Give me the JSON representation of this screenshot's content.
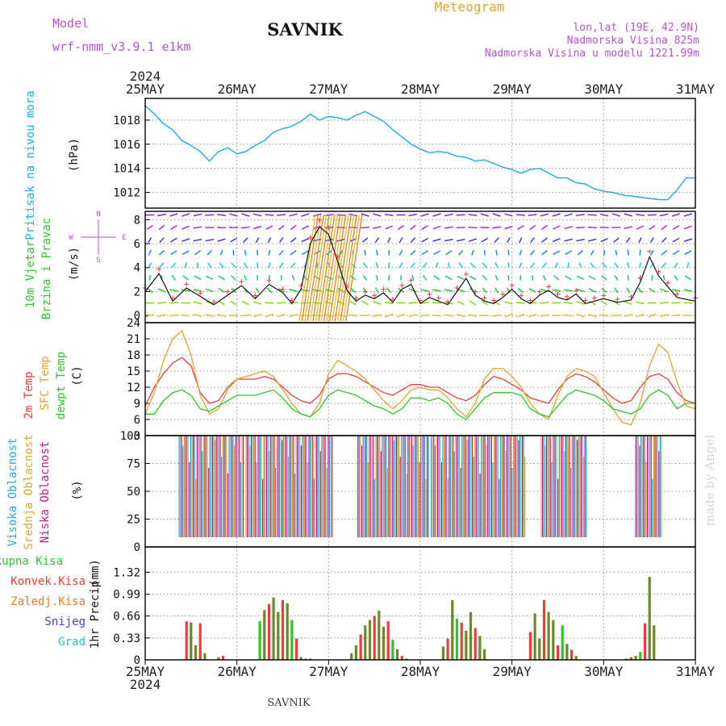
{
  "header": {
    "station": "SAVNIK",
    "product": "Meteogram",
    "model_label": "Model",
    "model_name": "wrf-nmm_v3.9.1 e1km",
    "coords": "lon,lat (19E, 42.9N)",
    "elevation": "Nadmorska Visina 825m",
    "model_elevation": "Nadmorska Visina u modelu 1221.99m",
    "footer_station": "SAVNIK",
    "watermark": "made by Angel"
  },
  "time_axis": {
    "year": "2024",
    "labels": [
      "25MAY",
      "26MAY",
      "27MAY",
      "28MAY",
      "29MAY",
      "30MAY",
      "31MAY"
    ],
    "range_days": [
      0,
      6
    ]
  },
  "colors": {
    "pressure": "#1fa9e6",
    "temp2m": "#ef3b3b",
    "sfc": "#e0a531",
    "dewpt": "#2dc52d",
    "cloud_high": "#1fa9e6",
    "cloud_mid": "#e0a531",
    "cloud_low": "#c8198a",
    "precip_total": "#2dc52d",
    "precip_conv": "#ef3b3b",
    "precip_frozen": "#f07a2b",
    "snow": "#4a3fdc",
    "hail": "#22c2c2",
    "wind_label": "#2dc52d",
    "legend_purple": "#b455d2"
  },
  "chart_data": [
    {
      "type": "line",
      "name": "pressure",
      "ylabel_color_text": "Pritisak na nivou mora",
      "unit": "(hPa)",
      "ylim": [
        1010.7,
        1019.8
      ],
      "yticks": [
        1012,
        1014,
        1016,
        1018
      ],
      "x_days": [
        0,
        0.1,
        0.2,
        0.3,
        0.4,
        0.5,
        0.6,
        0.7,
        0.8,
        0.9,
        1.0,
        1.1,
        1.2,
        1.3,
        1.4,
        1.5,
        1.6,
        1.7,
        1.8,
        1.9,
        2.0,
        2.1,
        2.2,
        2.3,
        2.4,
        2.5,
        2.6,
        2.7,
        2.8,
        2.9,
        3.0,
        3.1,
        3.2,
        3.3,
        3.4,
        3.5,
        3.6,
        3.7,
        3.8,
        3.9,
        4.0,
        4.1,
        4.2,
        4.3,
        4.4,
        4.5,
        4.6,
        4.7,
        4.8,
        4.9,
        5.0,
        5.1,
        5.2,
        5.3,
        5.4,
        5.5,
        5.6,
        5.7,
        5.8,
        5.9,
        6.0
      ],
      "values": [
        1019.2,
        1018.5,
        1017.7,
        1017.2,
        1016.3,
        1015.9,
        1015.4,
        1014.6,
        1015.4,
        1015.7,
        1015.2,
        1015.4,
        1015.9,
        1016.3,
        1017.0,
        1017.3,
        1017.5,
        1017.9,
        1018.5,
        1018.0,
        1018.3,
        1018.2,
        1018.0,
        1018.4,
        1018.7,
        1018.3,
        1017.9,
        1017.2,
        1016.6,
        1016.0,
        1015.6,
        1015.3,
        1015.4,
        1015.3,
        1015.0,
        1014.9,
        1014.6,
        1014.7,
        1014.4,
        1014.1,
        1013.9,
        1013.6,
        1013.9,
        1014.0,
        1013.6,
        1013.2,
        1013.2,
        1012.8,
        1012.7,
        1012.3,
        1012.1,
        1012.0,
        1011.8,
        1011.7,
        1011.6,
        1011.5,
        1011.4,
        1011.4,
        1012.2,
        1013.2,
        1013.2
      ]
    },
    {
      "type": "line",
      "name": "wind",
      "ylabel_left_1": "10m Vjetar",
      "ylabel_left_2": "Brzina i Pravac",
      "unit": "(m/s)",
      "compass": {
        "n": "N",
        "s": "S",
        "e": "E",
        "w": "W"
      },
      "ylim": [
        -0.6,
        8.7
      ],
      "yticks": [
        0,
        2,
        4,
        6,
        8
      ],
      "x_days": [
        0,
        0.15,
        0.3,
        0.45,
        0.6,
        0.75,
        0.9,
        1.05,
        1.2,
        1.35,
        1.5,
        1.6,
        1.7,
        1.8,
        1.9,
        2.0,
        2.1,
        2.2,
        2.3,
        2.4,
        2.5,
        2.6,
        2.7,
        2.8,
        2.9,
        3.0,
        3.1,
        3.2,
        3.3,
        3.4,
        3.5,
        3.6,
        3.7,
        3.8,
        3.9,
        4.0,
        4.1,
        4.2,
        4.3,
        4.4,
        4.5,
        4.6,
        4.7,
        4.8,
        4.9,
        5.0,
        5.15,
        5.3,
        5.4,
        5.5,
        5.6,
        5.7,
        5.8,
        6.0
      ],
      "speed": [
        2.0,
        3.5,
        1.2,
        2.3,
        1.6,
        0.9,
        1.7,
        2.5,
        1.4,
        2.6,
        1.9,
        1.0,
        2.2,
        6.0,
        7.4,
        6.8,
        4.5,
        2.1,
        1.2,
        1.7,
        1.4,
        1.9,
        1.1,
        2.2,
        2.6,
        1.0,
        1.5,
        1.2,
        0.9,
        2.0,
        3.1,
        1.7,
        1.2,
        1.0,
        1.5,
        2.2,
        1.4,
        1.0,
        1.7,
        2.1,
        1.5,
        1.3,
        1.8,
        1.0,
        1.2,
        1.4,
        1.1,
        1.3,
        2.8,
        4.9,
        3.3,
        2.4,
        1.5,
        1.2
      ],
      "direction": "arrows colored by height level"
    },
    {
      "type": "line",
      "name": "temperature",
      "legend": [
        "2m Temp",
        "SFC Temp",
        "dewpt Temp"
      ],
      "unit": "(C)",
      "ylim": [
        3,
        24
      ],
      "yticks": [
        3,
        6,
        9,
        12,
        15,
        18,
        21,
        24
      ],
      "x_days": [
        0,
        0.1,
        0.2,
        0.3,
        0.4,
        0.5,
        0.6,
        0.7,
        0.8,
        0.9,
        1.0,
        1.1,
        1.2,
        1.3,
        1.4,
        1.5,
        1.6,
        1.7,
        1.8,
        1.9,
        2.0,
        2.1,
        2.2,
        2.3,
        2.4,
        2.5,
        2.6,
        2.7,
        2.8,
        2.9,
        3.0,
        3.1,
        3.2,
        3.3,
        3.4,
        3.5,
        3.6,
        3.7,
        3.8,
        3.9,
        4.0,
        4.1,
        4.2,
        4.3,
        4.4,
        4.5,
        4.6,
        4.7,
        4.8,
        4.9,
        5.0,
        5.1,
        5.2,
        5.3,
        5.4,
        5.5,
        5.6,
        5.7,
        5.8,
        5.9,
        6.0
      ],
      "series": [
        {
          "name": "2m Temp",
          "values": [
            8.5,
            12.0,
            14.5,
            16.5,
            17.5,
            16.0,
            11.0,
            9.0,
            9.5,
            12.0,
            13.5,
            13.5,
            13.5,
            14.0,
            13.5,
            12.0,
            10.5,
            9.5,
            9.0,
            10.5,
            13.5,
            14.5,
            14.5,
            14.0,
            13.0,
            12.0,
            11.0,
            10.5,
            11.5,
            12.5,
            12.5,
            12.0,
            12.0,
            11.0,
            10.0,
            9.5,
            10.5,
            12.5,
            14.0,
            13.5,
            12.5,
            11.5,
            10.0,
            9.5,
            9.0,
            11.5,
            13.5,
            14.5,
            14.0,
            13.0,
            11.5,
            10.0,
            9.0,
            9.5,
            12.0,
            14.0,
            14.5,
            13.5,
            11.0,
            9.5,
            9.0
          ]
        },
        {
          "name": "SFC Temp",
          "values": [
            7.0,
            11.0,
            17.0,
            21.0,
            22.5,
            18.0,
            10.5,
            7.0,
            8.0,
            11.5,
            13.5,
            14.0,
            14.5,
            15.0,
            14.0,
            11.5,
            9.0,
            7.0,
            6.5,
            9.0,
            14.5,
            17.0,
            16.0,
            15.0,
            13.5,
            11.5,
            9.5,
            8.0,
            9.5,
            11.5,
            12.0,
            11.5,
            11.5,
            10.0,
            8.0,
            6.5,
            9.0,
            13.5,
            15.5,
            15.5,
            14.0,
            12.0,
            9.0,
            7.0,
            6.0,
            10.5,
            14.0,
            15.5,
            15.0,
            14.0,
            11.0,
            8.0,
            5.5,
            5.0,
            9.0,
            16.0,
            20.0,
            18.5,
            13.0,
            8.5,
            8.0
          ]
        },
        {
          "name": "dewpt Temp",
          "values": [
            7.0,
            7.0,
            9.5,
            11.0,
            11.5,
            10.5,
            8.0,
            7.5,
            8.5,
            9.5,
            10.5,
            10.5,
            10.5,
            11.0,
            11.5,
            10.0,
            8.0,
            7.0,
            6.5,
            8.0,
            10.5,
            11.5,
            11.0,
            10.5,
            9.5,
            8.5,
            8.0,
            7.0,
            8.0,
            10.0,
            10.0,
            9.5,
            10.0,
            9.0,
            7.0,
            6.0,
            8.0,
            10.0,
            11.0,
            11.0,
            11.0,
            10.5,
            8.0,
            7.0,
            6.5,
            8.5,
            10.5,
            11.5,
            11.0,
            10.5,
            9.5,
            8.0,
            7.5,
            7.0,
            8.0,
            10.5,
            11.5,
            10.5,
            8.0,
            9.0,
            9.0
          ]
        }
      ]
    },
    {
      "type": "bar",
      "name": "cloud",
      "legend": [
        "Visoka Oblacnost",
        "Srednja Oblacnost",
        "Niska Oblacnost"
      ],
      "unit": "(%)",
      "ylim": [
        0,
        100
      ],
      "yticks": [
        0,
        25,
        50,
        75,
        100
      ],
      "segments_days": [
        [
          0.37,
          1.08
        ],
        [
          1.1,
          2.05
        ],
        [
          2.32,
          3.1
        ],
        [
          3.12,
          4.15
        ],
        [
          4.32,
          4.82
        ],
        [
          5.35,
          5.65
        ]
      ]
    },
    {
      "type": "bar",
      "name": "precip",
      "legend": [
        "Ukupna Kisa",
        "Konvek.Kisa",
        "Zaledj.Kisa",
        "Snijeg",
        "Grad"
      ],
      "ylabel": "1hr Precip",
      "unit": "(mm)",
      "ylim": [
        0,
        1.7
      ],
      "yticks": [
        0,
        0.33,
        0.66,
        0.99,
        1.32
      ],
      "x_days": [
        0.45,
        0.5,
        0.55,
        0.6,
        0.65,
        0.8,
        0.85,
        1.25,
        1.3,
        1.35,
        1.4,
        1.45,
        1.5,
        1.55,
        1.6,
        1.65,
        1.7,
        1.75,
        1.8,
        2.25,
        2.3,
        2.35,
        2.4,
        2.45,
        2.5,
        2.55,
        2.6,
        2.65,
        2.7,
        2.75,
        2.8,
        2.85,
        3.25,
        3.3,
        3.35,
        3.4,
        3.45,
        3.5,
        3.55,
        3.6,
        3.65,
        3.7,
        4.2,
        4.25,
        4.3,
        4.35,
        4.4,
        4.45,
        4.5,
        4.55,
        4.6,
        4.65,
        4.7,
        5.25,
        5.3,
        5.35,
        5.4,
        5.45,
        5.5,
        5.55
      ],
      "values": [
        0.58,
        0.56,
        0.22,
        0.55,
        0.1,
        0.04,
        0.06,
        0.58,
        0.75,
        0.84,
        0.94,
        0.72,
        0.9,
        0.85,
        0.6,
        0.32,
        0.04,
        0.02,
        0.02,
        0.1,
        0.22,
        0.38,
        0.52,
        0.6,
        0.66,
        0.74,
        0.5,
        0.58,
        0.3,
        0.16,
        0.06,
        0.02,
        0.2,
        0.32,
        0.9,
        0.62,
        0.56,
        0.44,
        0.72,
        0.48,
        0.36,
        0.16,
        0.42,
        0.7,
        0.32,
        0.9,
        0.72,
        0.6,
        0.22,
        0.52,
        0.24,
        0.15,
        0.06,
        0.02,
        0.04,
        0.06,
        0.12,
        0.55,
        1.25,
        0.52
      ]
    }
  ]
}
